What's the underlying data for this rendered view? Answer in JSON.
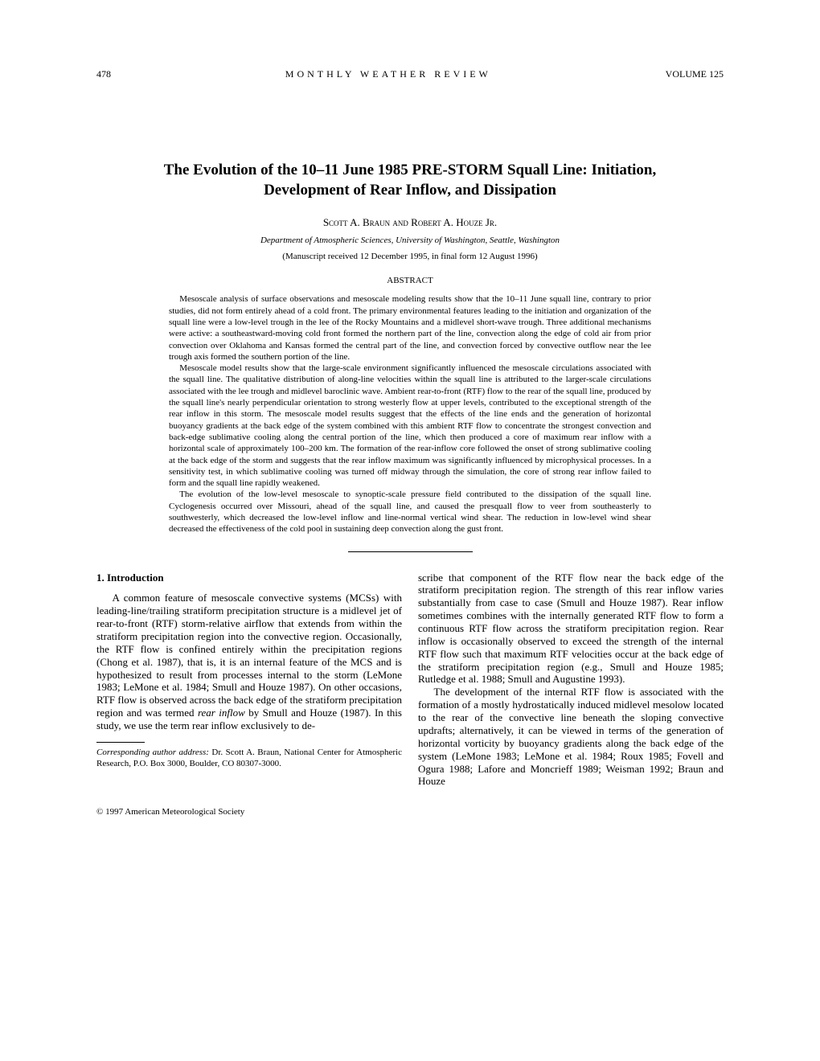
{
  "header": {
    "page_number": "478",
    "journal_name": "MONTHLY WEATHER REVIEW",
    "volume_label": "VOLUME",
    "volume_number": "125"
  },
  "title": "The Evolution of the 10–11 June 1985 PRE-STORM Squall Line: Initiation, Development of Rear Inflow, and Dissipation",
  "authors": "Scott A. Braun and Robert A. Houze Jr.",
  "affiliation": "Department of Atmospheric Sciences, University of Washington, Seattle, Washington",
  "manuscript_info": "(Manuscript received 12 December 1995, in final form 12 August 1996)",
  "abstract_label": "ABSTRACT",
  "abstract": {
    "p1": "Mesoscale analysis of surface observations and mesoscale modeling results show that the 10–11 June squall line, contrary to prior studies, did not form entirely ahead of a cold front. The primary environmental features leading to the initiation and organization of the squall line were a low-level trough in the lee of the Rocky Mountains and a midlevel short-wave trough. Three additional mechanisms were active: a southeastward-moving cold front formed the northern part of the line, convection along the edge of cold air from prior convection over Oklahoma and Kansas formed the central part of the line, and convection forced by convective outflow near the lee trough axis formed the southern portion of the line.",
    "p2": "Mesoscale model results show that the large-scale environment significantly influenced the mesoscale circulations associated with the squall line. The qualitative distribution of along-line velocities within the squall line is attributed to the larger-scale circulations associated with the lee trough and midlevel baroclinic wave. Ambient rear-to-front (RTF) flow to the rear of the squall line, produced by the squall line's nearly perpendicular orientation to strong westerly flow at upper levels, contributed to the exceptional strength of the rear inflow in this storm. The mesoscale model results suggest that the effects of the line ends and the generation of horizontal buoyancy gradients at the back edge of the system combined with this ambient RTF flow to concentrate the strongest convection and back-edge sublimative cooling along the central portion of the line, which then produced a core of maximum rear inflow with a horizontal scale of approximately 100–200 km. The formation of the rear-inflow core followed the onset of strong sublimative cooling at the back edge of the storm and suggests that the rear inflow maximum was significantly influenced by microphysical processes. In a sensitivity test, in which sublimative cooling was turned off midway through the simulation, the core of strong rear inflow failed to form and the squall line rapidly weakened.",
    "p3": "The evolution of the low-level mesoscale to synoptic-scale pressure field contributed to the dissipation of the squall line. Cyclogenesis occurred over Missouri, ahead of the squall line, and caused the presquall flow to veer from southeasterly to southwesterly, which decreased the low-level inflow and line-normal vertical wind shear. The reduction in low-level wind shear decreased the effectiveness of the cold pool in sustaining deep convection along the gust front."
  },
  "section1_title": "1. Introduction",
  "col1": {
    "p1_a": "A common feature of mesoscale convective systems (MCSs) with leading-line/trailing stratiform precipitation structure is a midlevel jet of rear-to-front (RTF) storm-relative airflow that extends from within the stratiform precipitation region into the convective region. Occasionally, the RTF flow is confined entirely within the precipitation regions (Chong et al. 1987), that is, it is an internal feature of the MCS and is hypothesized to result from processes internal to the storm (LeMone 1983; LeMone et al. 1984; Smull and Houze 1987). On other occasions, RTF flow is observed across the back edge of the stratiform precipitation region and was termed ",
    "p1_italic": "rear inflow",
    "p1_b": " by Smull and Houze (1987). In this study, we use the term rear inflow exclusively to de-"
  },
  "col2": {
    "p1": "scribe that component of the RTF flow near the back edge of the stratiform precipitation region. The strength of this rear inflow varies substantially from case to case (Smull and Houze 1987). Rear inflow sometimes combines with the internally generated RTF flow to form a continuous RTF flow across the stratiform precipitation region. Rear inflow is occasionally observed to exceed the strength of the internal RTF flow such that maximum RTF velocities occur at the back edge of the stratiform precipitation region (e.g., Smull and Houze 1985; Rutledge et al. 1988; Smull and Augustine 1993).",
    "p2": "The development of the internal RTF flow is associated with the formation of a mostly hydrostatically induced midlevel mesolow located to the rear of the convective line beneath the sloping convective updrafts; alternatively, it can be viewed in terms of the generation of horizontal vorticity by buoyancy gradients along the back edge of the system (LeMone 1983; LeMone et al. 1984; Roux 1985; Fovell and Ogura 1988; Lafore and Moncrieff 1989; Weisman 1992; Braun and Houze"
  },
  "footnote": {
    "label": "Corresponding author address:",
    "text": " Dr. Scott A. Braun, National Center for Atmospheric Research, P.O. Box 3000, Boulder, CO 80307-3000."
  },
  "copyright": "© 1997 American Meteorological Society"
}
